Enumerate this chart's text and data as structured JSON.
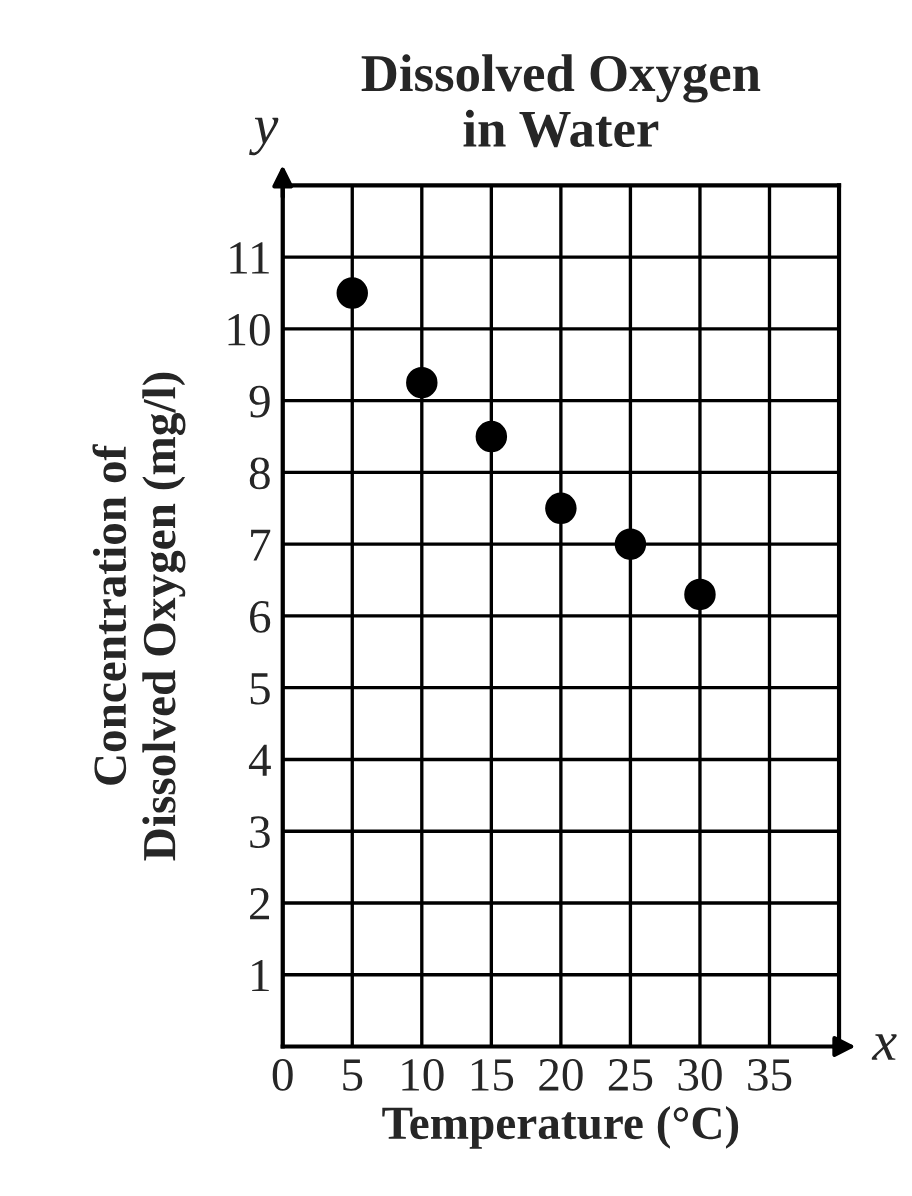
{
  "chart_data": {
    "type": "scatter",
    "title": "Dissolved Oxygen\nin Water",
    "xlabel": "Temperature (°C)",
    "ylabel": "Concentration of\nDissolved Oxygen (mg/l)",
    "annotations": [
      "x",
      "y"
    ],
    "x": [
      5,
      10,
      15,
      20,
      25,
      30
    ],
    "values": [
      10.5,
      9.25,
      8.5,
      7.5,
      7.0,
      6.3
    ],
    "color": "#000000",
    "marker": "circle",
    "xlim": [
      0,
      40
    ],
    "xticks": [
      0,
      5,
      10,
      15,
      20,
      25,
      30,
      35
    ],
    "ylim": [
      0,
      12
    ],
    "yticks": [
      1,
      2,
      3,
      4,
      5,
      6,
      7,
      8,
      9,
      10,
      11
    ],
    "grid": true
  }
}
